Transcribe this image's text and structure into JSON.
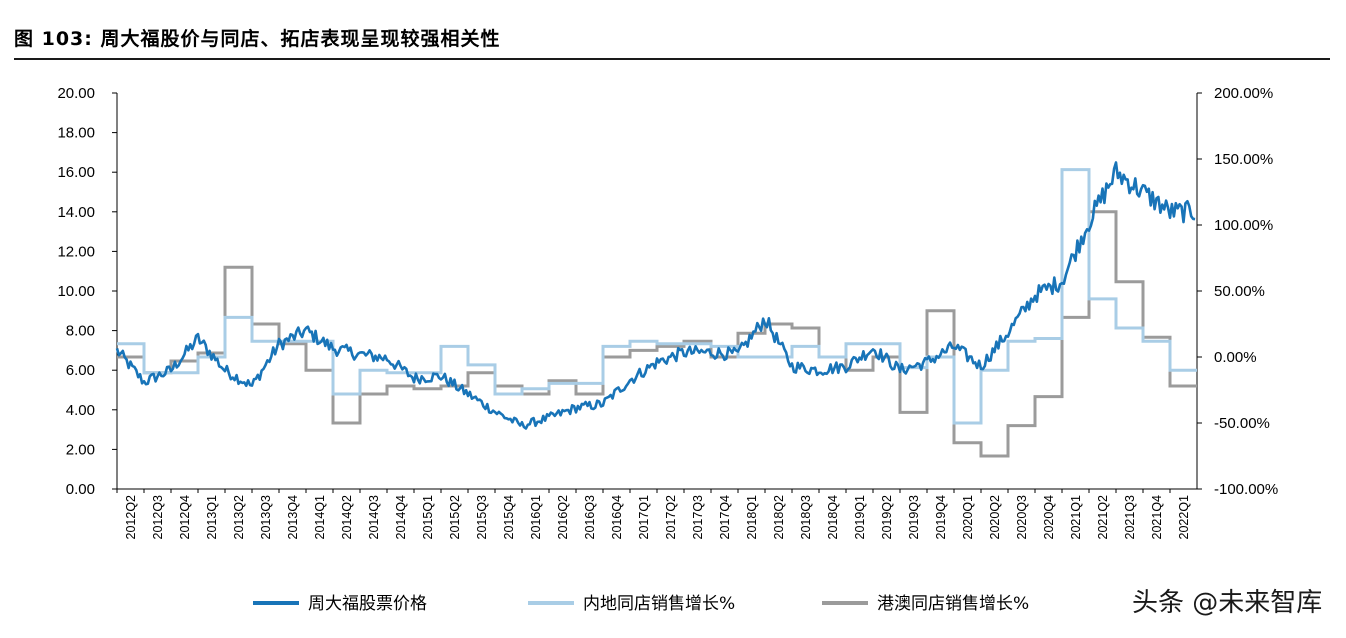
{
  "title": "图 103:  周大福股价与同店、拓店表现呈现较强相关性",
  "watermark": "头条 @未来智库",
  "colors": {
    "price": "#1874b8",
    "mainland": "#a9cde6",
    "hkmacau": "#9b9b9b"
  },
  "chart_data": {
    "type": "line",
    "x": [
      "2012Q2",
      "2012Q3",
      "2012Q4",
      "2013Q1",
      "2013Q2",
      "2013Q3",
      "2013Q4",
      "2014Q1",
      "2014Q2",
      "2014Q3",
      "2014Q4",
      "2015Q1",
      "2015Q2",
      "2015Q3",
      "2015Q4",
      "2016Q1",
      "2016Q2",
      "2016Q3",
      "2016Q4",
      "2017Q1",
      "2017Q2",
      "2017Q3",
      "2017Q4",
      "2018Q1",
      "2018Q2",
      "2018Q3",
      "2018Q4",
      "2019Q1",
      "2019Q2",
      "2019Q3",
      "2019Q4",
      "2020Q1",
      "2020Q2",
      "2020Q3",
      "2020Q4",
      "2021Q1",
      "2021Q2",
      "2021Q3",
      "2021Q4",
      "2022Q1"
    ],
    "y_left": {
      "ticks": [
        "0.00",
        "2.00",
        "4.00",
        "6.00",
        "8.00",
        "10.00",
        "12.00",
        "14.00",
        "16.00",
        "18.00",
        "20.00"
      ],
      "range": [
        0,
        20
      ]
    },
    "y_right": {
      "ticks": [
        "-100.00%",
        "-50.00%",
        "0.00%",
        "50.00%",
        "100.00%",
        "150.00%",
        "200.00%"
      ],
      "range": [
        -100,
        200
      ]
    },
    "series": [
      {
        "name": "周大福股票价格",
        "axis": "left",
        "style": "jagged",
        "values": [
          7.0,
          5.4,
          6.0,
          7.6,
          6.0,
          5.2,
          7.3,
          8.0,
          7.1,
          6.8,
          6.6,
          5.6,
          5.7,
          4.8,
          3.9,
          3.2,
          3.6,
          4.1,
          4.3,
          5.5,
          6.4,
          6.9,
          6.9,
          6.8,
          8.6,
          6.2,
          6.0,
          6.2,
          7.1,
          6.0,
          6.4,
          7.2,
          6.2,
          7.9,
          9.8,
          10.5,
          13.5,
          16.0,
          15.0,
          14.0
        ]
      },
      {
        "name": "内地同店销售增长%",
        "axis": "right",
        "style": "step",
        "values": [
          10,
          -12,
          -12,
          0,
          30,
          12,
          12,
          12,
          -28,
          -10,
          -12,
          -12,
          8,
          -6,
          -28,
          -24,
          -20,
          -20,
          8,
          12,
          10,
          10,
          8,
          0,
          0,
          8,
          0,
          10,
          10,
          -8,
          0,
          -50,
          -10,
          12,
          14,
          142,
          44,
          22,
          12,
          -10
        ]
      },
      {
        "name": "港澳同店销售增长%",
        "axis": "right",
        "style": "step",
        "values": [
          0,
          -12,
          -3,
          3,
          68,
          25,
          10,
          -10,
          -50,
          -28,
          -22,
          -24,
          -22,
          -12,
          -22,
          -28,
          -18,
          -28,
          0,
          5,
          8,
          12,
          0,
          18,
          25,
          22,
          0,
          -10,
          0,
          -42,
          35,
          -65,
          -75,
          -52,
          -30,
          30,
          110,
          57,
          15,
          -22
        ]
      }
    ]
  }
}
